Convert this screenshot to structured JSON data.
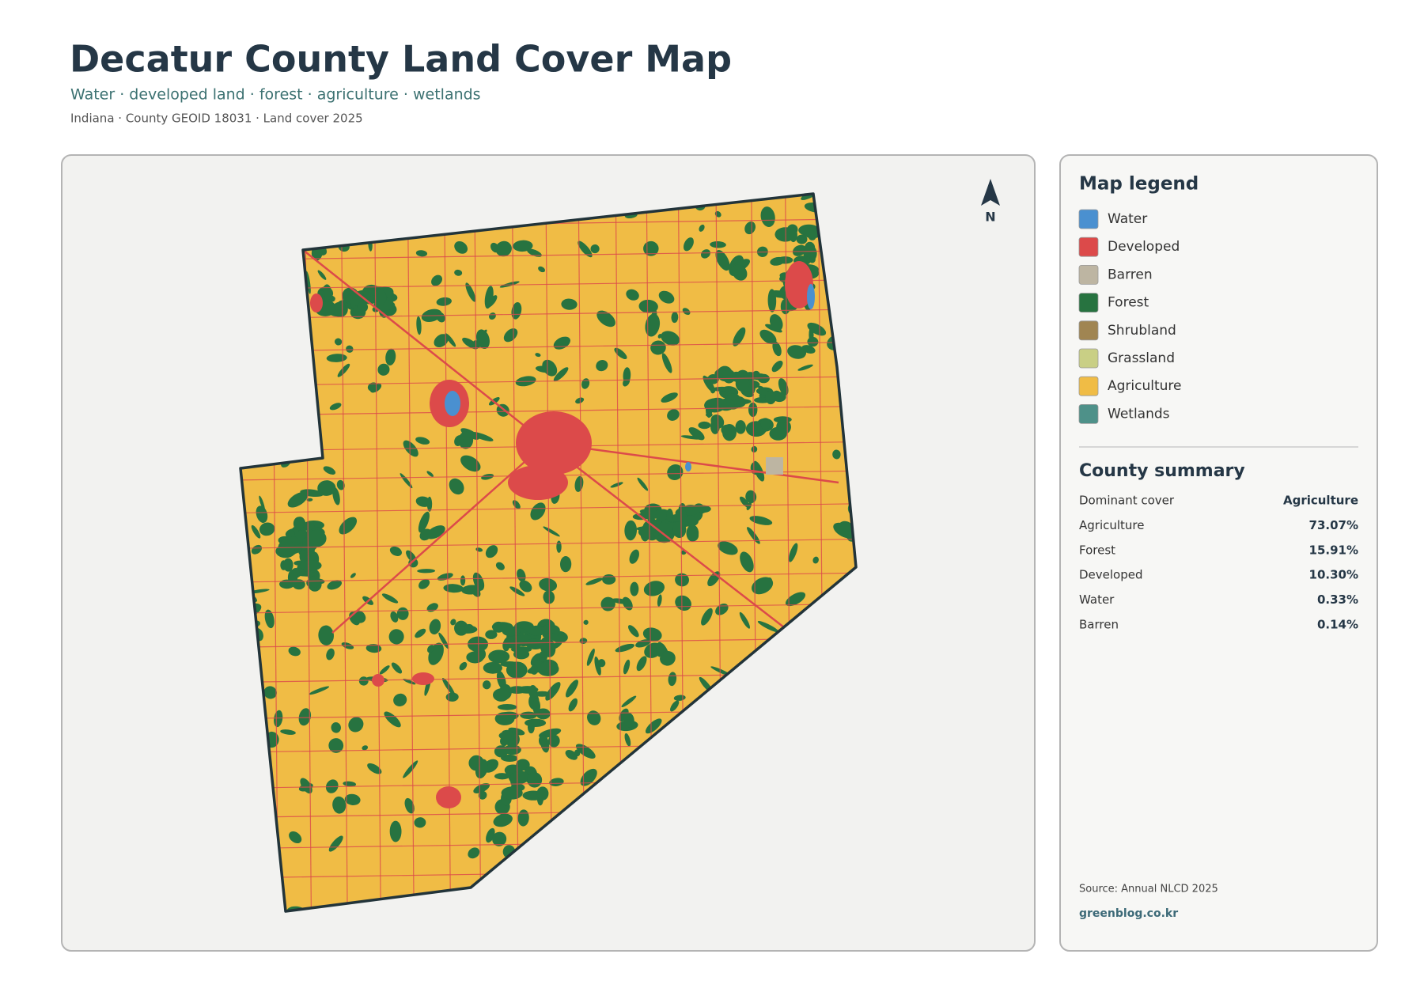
{
  "header": {
    "title": "Decatur County Land Cover Map",
    "subtitle": "Water · developed land · forest · agriculture · wetlands",
    "meta": "Indiana · County GEOID 18031 · Land cover 2025"
  },
  "map": {
    "north_label": "N"
  },
  "legend": {
    "title": "Map legend",
    "items": [
      {
        "name": "Water",
        "color": "#4a90d0"
      },
      {
        "name": "Developed",
        "color": "#dc4a4a"
      },
      {
        "name": "Barren",
        "color": "#bdb5a2"
      },
      {
        "name": "Forest",
        "color": "#277340"
      },
      {
        "name": "Shrubland",
        "color": "#a08552"
      },
      {
        "name": "Grassland",
        "color": "#c9cf85"
      },
      {
        "name": "Agriculture",
        "color": "#f0bc45"
      },
      {
        "name": "Wetlands",
        "color": "#4e9189"
      }
    ]
  },
  "summary": {
    "title": "County summary",
    "rows": [
      [
        "Dominant cover",
        "Agriculture"
      ],
      [
        "Agriculture",
        "73.07%"
      ],
      [
        "Forest",
        "15.91%"
      ],
      [
        "Developed",
        "10.30%"
      ],
      [
        "Water",
        "0.33%"
      ],
      [
        "Barren",
        "0.14%"
      ]
    ]
  },
  "footer": {
    "source": "Source: Annual NLCD 2025",
    "site": "greenblog.co.kr"
  }
}
